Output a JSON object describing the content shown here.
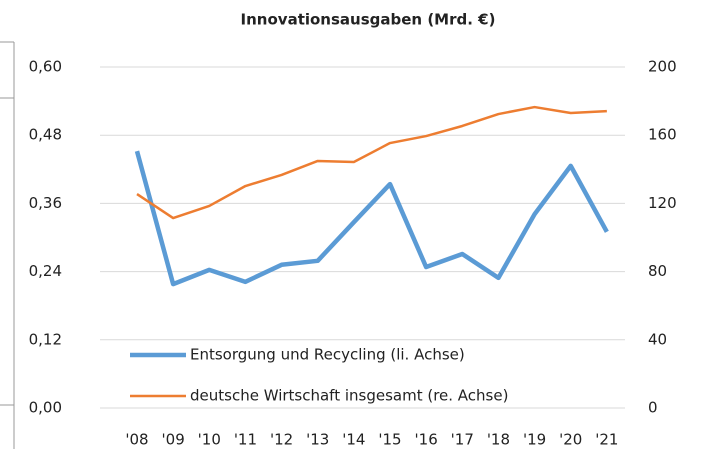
{
  "chart_data": {
    "type": "line",
    "title": "Innovationsausgaben (Mrd. €)",
    "categories": [
      "'08",
      "'09",
      "'10",
      "'11",
      "'12",
      "'13",
      "'14",
      "'15",
      "'16",
      "'17",
      "'18",
      "'19",
      "'20",
      "'21"
    ],
    "series": [
      {
        "name": "Entsorgung und Recycling (li. Achse)",
        "color": "#5b9bd5",
        "axis": "y",
        "values": [
          0.452,
          0.218,
          0.243,
          0.222,
          0.252,
          0.259,
          0.327,
          0.394,
          0.248,
          0.271,
          0.229,
          0.341,
          0.426,
          0.31
        ]
      },
      {
        "name": "deutsche Wirtschaft insgesamt (re. Achse)",
        "color": "#ed7d31",
        "axis": "y2",
        "values": [
          125.5,
          111.4,
          118.5,
          130.2,
          136.7,
          144.9,
          144.3,
          155.4,
          159.5,
          165.4,
          172.4,
          176.5,
          173,
          174.1
        ]
      }
    ],
    "ylim": [
      0,
      0.6
    ],
    "yticks": [
      {
        "value": 0,
        "label": "0,00"
      },
      {
        "value": 0.12,
        "label": "0,12"
      },
      {
        "value": 0.24,
        "label": "0,24"
      },
      {
        "value": 0.36,
        "label": "0,36"
      },
      {
        "value": 0.48,
        "label": "0,48"
      },
      {
        "value": 0.6,
        "label": "0,60"
      }
    ],
    "y2lim": [
      0,
      200
    ],
    "y2ticks": [
      0,
      40,
      80,
      120,
      160,
      200
    ],
    "grid": true,
    "legend": "lower center"
  }
}
